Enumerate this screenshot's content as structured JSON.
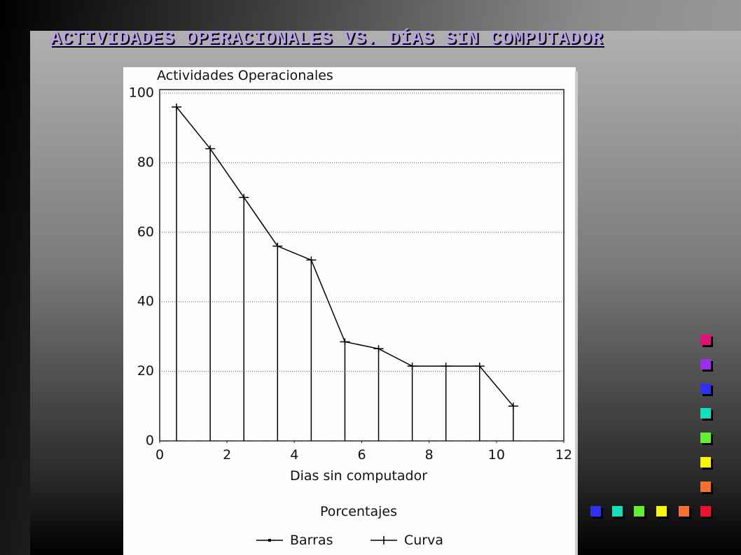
{
  "slide": {
    "title": "ACTIVIDADES OPERACIONALES VS. DÍAS SIN COMPUTADOR"
  },
  "chart_data": {
    "type": "bar",
    "ylabel": "Actividades Operacionales",
    "xlabel": "Dias sin computador",
    "legend_title": "Porcentajes",
    "x": [
      0.5,
      1.5,
      2.5,
      3.5,
      4.5,
      5.5,
      6.5,
      7.5,
      8.5,
      9.5,
      10.5
    ],
    "series": [
      {
        "name": "Barras",
        "type": "bar",
        "color": "#000000",
        "values": [
          96,
          84,
          70,
          56,
          52,
          28.5,
          26.5,
          21.5,
          21.5,
          21.5,
          10
        ]
      },
      {
        "name": "Curva",
        "type": "line",
        "color": "#000000",
        "values": [
          96,
          84,
          70,
          56,
          52,
          28.5,
          26.5,
          21.5,
          21.5,
          21.5,
          10
        ]
      }
    ],
    "xlim": [
      0,
      12
    ],
    "ylim": [
      0,
      100
    ],
    "xticks": [
      0,
      2,
      4,
      6,
      8,
      10,
      12
    ],
    "yticks": [
      0,
      20,
      40,
      60,
      80,
      100
    ],
    "grid": true
  }
}
